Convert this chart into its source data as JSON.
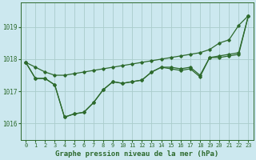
{
  "xlabel": "Graphe pression niveau de la mer (hPa)",
  "background_color": "#cce8ef",
  "grid_color": "#aacccc",
  "line_color": "#2d6a2d",
  "ylim": [
    1015.5,
    1019.75
  ],
  "yticks": [
    1016,
    1017,
    1018,
    1019
  ],
  "xlim": [
    -0.5,
    23.5
  ],
  "xticks": [
    0,
    1,
    2,
    3,
    4,
    5,
    6,
    7,
    8,
    9,
    10,
    11,
    12,
    13,
    14,
    15,
    16,
    17,
    18,
    19,
    20,
    21,
    22,
    23
  ],
  "line_smooth": [
    1017.9,
    1017.75,
    1017.6,
    1017.5,
    1017.5,
    1017.55,
    1017.6,
    1017.65,
    1017.7,
    1017.75,
    1017.8,
    1017.85,
    1017.9,
    1017.95,
    1018.0,
    1018.05,
    1018.1,
    1018.15,
    1018.2,
    1018.3,
    1018.5,
    1018.6,
    1019.05,
    1019.35
  ],
  "line_detail1": [
    1017.9,
    1017.4,
    1017.4,
    1017.2,
    1016.2,
    1016.3,
    1016.35,
    1016.65,
    1017.05,
    1017.3,
    1017.25,
    1017.3,
    1017.35,
    1017.6,
    1017.75,
    1017.75,
    1017.7,
    1017.75,
    1017.5,
    1018.05,
    1018.1,
    1018.15,
    1018.2,
    1019.35
  ],
  "line_detail2": [
    1017.9,
    1017.4,
    1017.4,
    1017.2,
    1016.2,
    1016.3,
    1016.35,
    1016.65,
    1017.05,
    1017.3,
    1017.25,
    1017.3,
    1017.35,
    1017.6,
    1017.75,
    1017.7,
    1017.65,
    1017.7,
    1017.45,
    1018.05,
    1018.05,
    1018.1,
    1018.15,
    1019.35
  ]
}
